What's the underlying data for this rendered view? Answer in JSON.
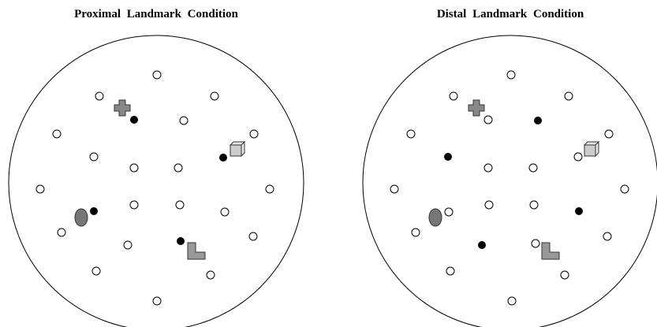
{
  "panels": [
    {
      "title": "Proximal Landmark Condition"
    },
    {
      "title": "Distal Landmark Condition"
    }
  ]
}
